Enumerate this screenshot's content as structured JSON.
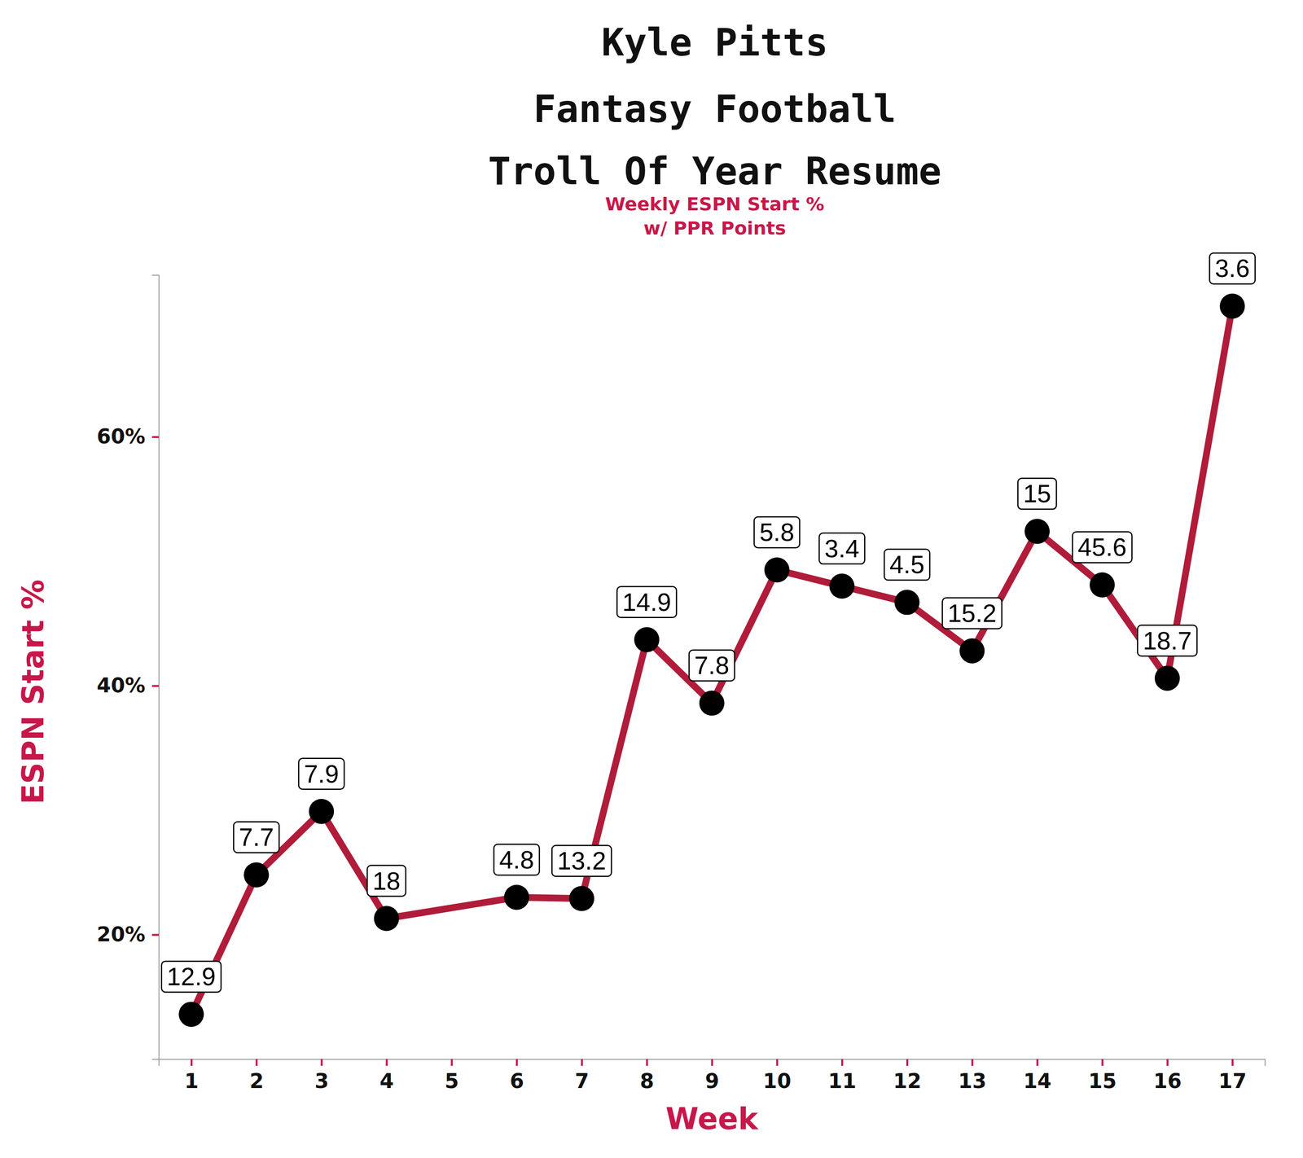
{
  "chart_data": {
    "type": "line",
    "title": [
      "Kyle Pitts",
      "Fantasy Football",
      "Troll Of Year Resume"
    ],
    "subtitle": [
      "Weekly ESPN Start %",
      "w/ PPR Points"
    ],
    "x_label": "Week",
    "y_label": "ESPN Start %",
    "x": [
      1,
      2,
      3,
      4,
      6,
      7,
      8,
      9,
      10,
      11,
      12,
      13,
      14,
      15,
      16,
      17
    ],
    "series": [
      {
        "color": "#b01c3a",
        "marker": "circle",
        "line_style": "solid",
        "values": [
          13.6,
          24.8,
          29.9,
          21.3,
          23.0,
          22.9,
          43.7,
          38.6,
          49.3,
          48.0,
          46.7,
          42.8,
          52.4,
          48.1,
          40.6,
          70.5
        ],
        "ppr_points": [
          12.9,
          7.7,
          7.9,
          18,
          4.8,
          13.2,
          14.9,
          7.8,
          5.8,
          3.4,
          4.5,
          15.2,
          15,
          45.6,
          18.7,
          3.6
        ]
      }
    ],
    "xlim": [
      0.5,
      17.5
    ],
    "xticks": [
      1,
      2,
      3,
      4,
      5,
      6,
      7,
      8,
      9,
      10,
      11,
      12,
      13,
      14,
      15,
      16,
      17
    ],
    "ylim": [
      10,
      73
    ],
    "yticks": [
      {
        "value": 20,
        "label": "20%"
      },
      {
        "value": 40,
        "label": "40%"
      },
      {
        "value": 60,
        "label": "60%"
      }
    ],
    "grid": false
  }
}
